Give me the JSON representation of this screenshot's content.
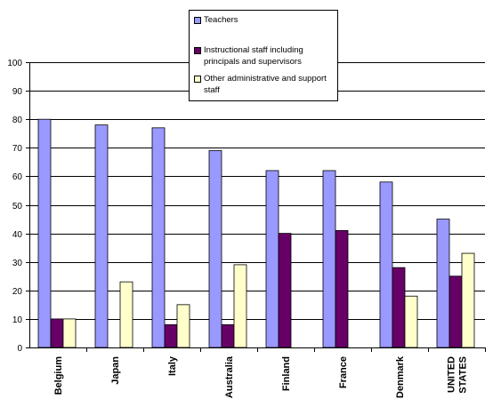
{
  "chart_data": {
    "type": "bar",
    "title": "",
    "xlabel": "",
    "ylabel": "",
    "ylim": [
      0,
      100
    ],
    "yticks": [
      0,
      10,
      20,
      30,
      40,
      50,
      60,
      70,
      80,
      90,
      100
    ],
    "grid": true,
    "legend_position": "top-center",
    "categories": [
      "Belgium",
      "Japan",
      "Italy",
      "Australia",
      "Finland",
      "France",
      "Denmark",
      "UNITED STATES"
    ],
    "series": [
      {
        "name": "Teachers",
        "color": "#9999ff",
        "values": [
          80,
          78,
          77,
          69,
          62,
          62,
          58,
          45
        ]
      },
      {
        "name": "Instructional staff including principals and supervisors",
        "color": "#660066",
        "values": [
          10,
          null,
          8,
          8,
          40,
          41,
          28,
          25
        ]
      },
      {
        "name": "Other administrative and support staff",
        "color": "#ffffcc",
        "values": [
          10,
          23,
          15,
          29,
          null,
          null,
          18,
          33
        ]
      }
    ]
  }
}
